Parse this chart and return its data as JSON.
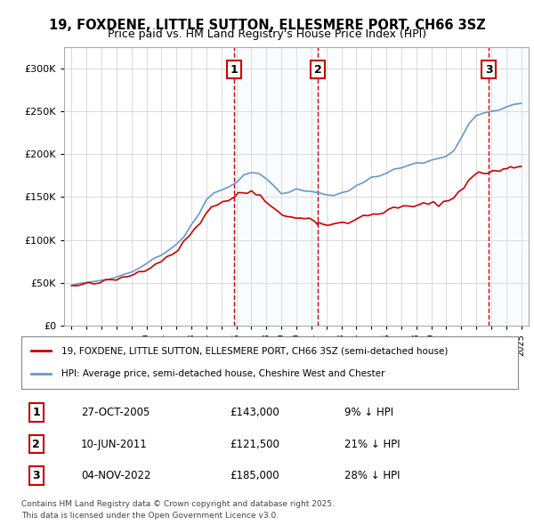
{
  "title_line1": "19, FOXDENE, LITTLE SUTTON, ELLESMERE PORT, CH66 3SZ",
  "title_line2": "Price paid vs. HM Land Registry's House Price Index (HPI)",
  "ylabel": "",
  "xlabel": "",
  "background_color": "#ffffff",
  "plot_bg_color": "#ffffff",
  "grid_color": "#cccccc",
  "sale_color": "#cc0000",
  "hpi_color": "#6699cc",
  "hpi_fill_color": "#ddeeff",
  "dashed_line_color": "#cc0000",
  "marker_box_color": "#cc0000",
  "sale_label": "19, FOXDENE, LITTLE SUTTON, ELLESMERE PORT, CH66 3SZ (semi-detached house)",
  "hpi_label": "HPI: Average price, semi-detached house, Cheshire West and Chester",
  "transactions": [
    {
      "num": 1,
      "date": "27-OCT-2005",
      "price": 143000,
      "pct": "9%",
      "direction": "↓",
      "x_year": 2005.83
    },
    {
      "num": 2,
      "date": "10-JUN-2011",
      "price": 121500,
      "pct": "21%",
      "direction": "↓",
      "x_year": 2011.44
    },
    {
      "num": 3,
      "date": "04-NOV-2022",
      "price": 185000,
      "pct": "28%",
      "direction": "↓",
      "x_year": 2022.84
    }
  ],
  "footer_line1": "Contains HM Land Registry data © Crown copyright and database right 2025.",
  "footer_line2": "This data is licensed under the Open Government Licence v3.0.",
  "ylim": [
    0,
    325000
  ],
  "xlim_start": 1994.5,
  "xlim_end": 2025.5,
  "yticks": [
    0,
    50000,
    100000,
    150000,
    200000,
    250000,
    300000
  ],
  "ytick_labels": [
    "£0",
    "£50K",
    "£100K",
    "£150K",
    "£200K",
    "£250K",
    "£300K"
  ]
}
